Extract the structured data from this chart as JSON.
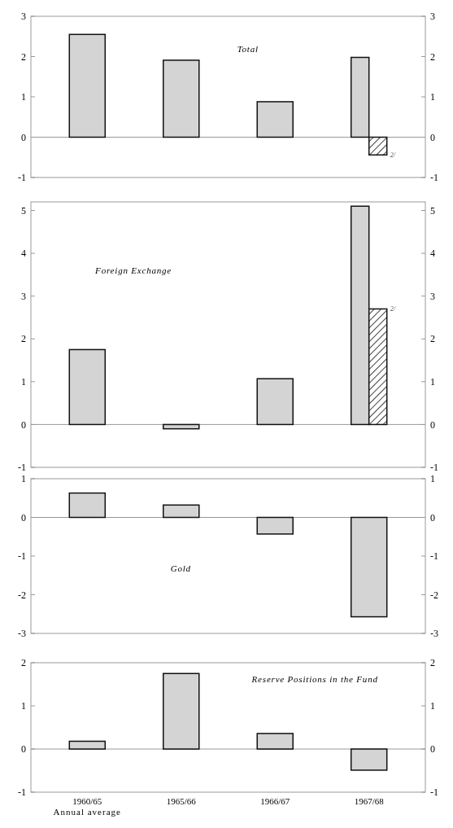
{
  "chart_data": [
    {
      "type": "bar",
      "title": "Total",
      "categories": [
        "1960/65",
        "1965/66",
        "1966/67",
        "1967/68"
      ],
      "series": [
        {
          "color": "#d4d4d4",
          "values": [
            2.55,
            1.91,
            0.88,
            1.98
          ]
        },
        {
          "color": "#111111",
          "values": [
            null,
            null,
            null,
            -0.44
          ]
        }
      ],
      "ylim": [
        -1,
        3
      ],
      "yticks": [
        -1,
        0,
        1,
        2,
        3
      ],
      "y2lim": [
        -1,
        3
      ],
      "y2ticks": [
        -1,
        0,
        1,
        2,
        3
      ],
      "tick_labels": "y",
      "ref_lines": [
        {
          "axis": "y",
          "value": 0
        }
      ],
      "annotations": [
        "2/"
      ]
    },
    {
      "type": "bar",
      "title": "Foreign Exchange",
      "categories": [
        "1960/65",
        "1965/66",
        "1966/67",
        "1967/68"
      ],
      "series": [
        {
          "color": "#d4d4d4",
          "values": [
            1.75,
            -0.1,
            1.07,
            5.1
          ]
        },
        {
          "color": "#111111",
          "values": [
            null,
            null,
            null,
            2.7
          ]
        }
      ],
      "ylim": [
        -1,
        5.2
      ],
      "yticks": [
        -1,
        0,
        1,
        2,
        3,
        4,
        5
      ],
      "y2lim": [
        -1,
        5.2
      ],
      "y2ticks": [
        -1,
        0,
        1,
        2,
        3,
        4,
        5
      ],
      "tick_labels": "y",
      "ref_lines": [
        {
          "axis": "y",
          "value": 0
        }
      ],
      "annotations": [
        "2/"
      ]
    },
    {
      "type": "bar",
      "title": "Gold",
      "categories": [
        "1960/65",
        "1965/66",
        "1966/67",
        "1967/68"
      ],
      "series": [
        {
          "color": "#d4d4d4",
          "values": [
            0.63,
            0.32,
            -0.43,
            -2.57
          ]
        }
      ],
      "ylim": [
        -3,
        1
      ],
      "yticks": [
        -3,
        -2,
        -1,
        0,
        1
      ],
      "y2lim": [
        -3,
        1
      ],
      "y2ticks": [
        -3,
        -2,
        -1,
        0,
        1
      ],
      "tick_labels": "y",
      "ref_lines": [
        {
          "axis": "y",
          "value": 0
        }
      ]
    },
    {
      "type": "bar",
      "title": "Reserve Positions in the Fund",
      "categories": [
        "1960/65\nAnnual average",
        "1965/66",
        "1966/67",
        "1967/68"
      ],
      "series": [
        {
          "color": "#d4d4d4",
          "values": [
            0.18,
            1.75,
            0.36,
            -0.49
          ]
        }
      ],
      "ylim": [
        -1,
        2
      ],
      "yticks": [
        -1,
        0,
        1,
        2
      ],
      "y2lim": [
        -1,
        2
      ],
      "y2ticks": [
        -1,
        0,
        1,
        2
      ],
      "ref_lines": [
        {
          "axis": "y",
          "value": 0
        }
      ]
    }
  ]
}
